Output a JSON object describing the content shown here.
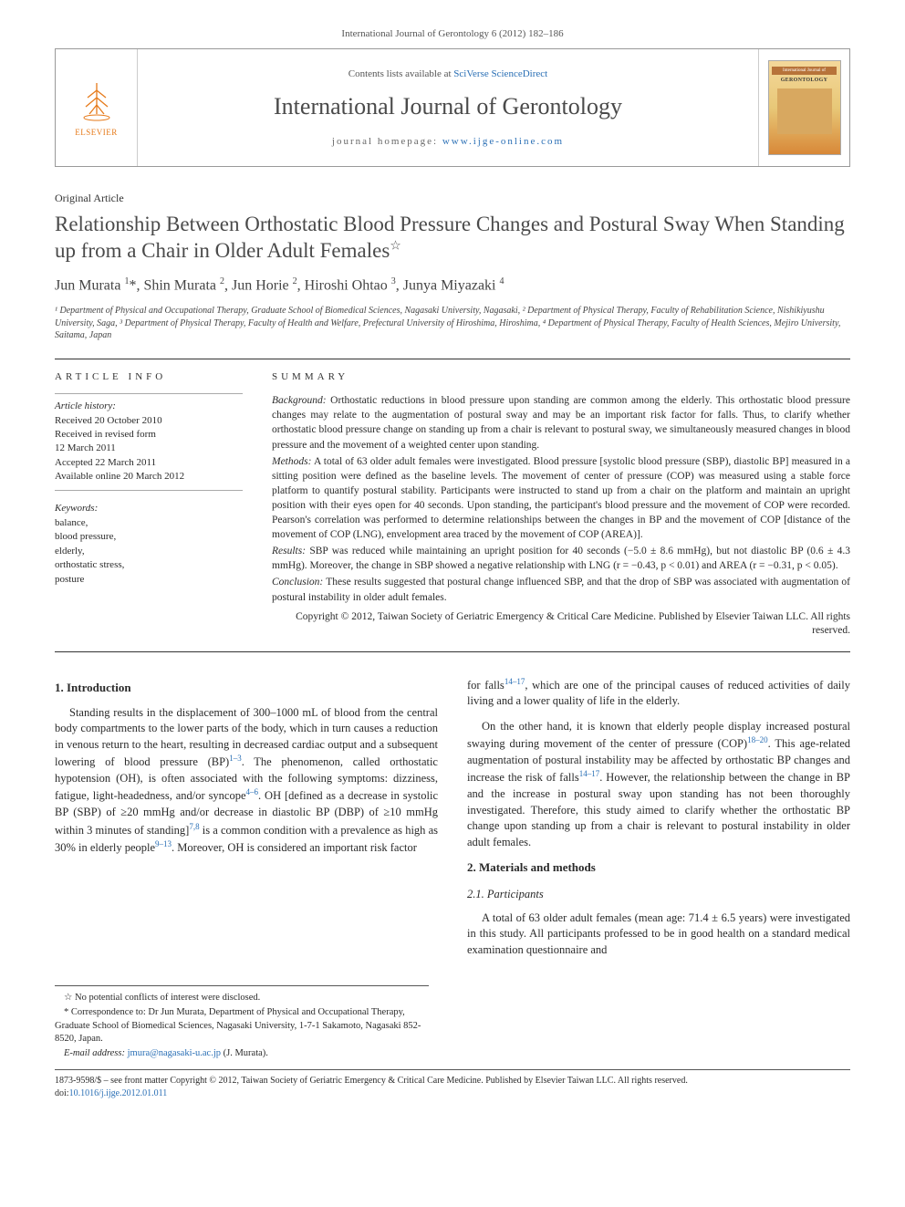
{
  "citation": "International Journal of Gerontology 6 (2012) 182–186",
  "masthead": {
    "publisher": "ELSEVIER",
    "contents_prefix": "Contents lists available at ",
    "contents_link": "SciVerse ScienceDirect",
    "journal_title": "International Journal of Gerontology",
    "homepage_prefix": "journal homepage: ",
    "homepage_url": "www.ijge-online.com",
    "cover_banner": "International Journal of",
    "cover_title": "GERONTOLOGY"
  },
  "article": {
    "type": "Original Article",
    "title": "Relationship Between Orthostatic Blood Pressure Changes and Postural Sway When Standing up from a Chair in Older Adult Females",
    "title_note_symbol": "☆",
    "authors_html": "Jun Murata <sup>1</sup>*, Shin Murata <sup>2</sup>, Jun Horie <sup>2</sup>, Hiroshi Ohtao <sup>3</sup>, Junya Miyazaki <sup>4</sup>",
    "affiliations": "¹ Department of Physical and Occupational Therapy, Graduate School of Biomedical Sciences, Nagasaki University, Nagasaki, ² Department of Physical Therapy, Faculty of Rehabilitation Science, Nishikiyushu University, Saga, ³ Department of Physical Therapy, Faculty of Health and Welfare, Prefectural University of Hiroshima, Hiroshima, ⁴ Department of Physical Therapy, Faculty of Health Sciences, Mejiro University, Saitama, Japan"
  },
  "info": {
    "label": "ARTICLE INFO",
    "history_label": "Article history:",
    "history": [
      "Received 20 October 2010",
      "Received in revised form",
      "12 March 2011",
      "Accepted 22 March 2011",
      "Available online 20 March 2012"
    ],
    "keywords_label": "Keywords:",
    "keywords": [
      "balance,",
      "blood pressure,",
      "elderly,",
      "orthostatic stress,",
      "posture"
    ]
  },
  "summary": {
    "label": "SUMMARY",
    "background_label": "Background:",
    "background": " Orthostatic reductions in blood pressure upon standing are common among the elderly. This orthostatic blood pressure changes may relate to the augmentation of postural sway and may be an important risk factor for falls. Thus, to clarify whether orthostatic blood pressure change on standing up from a chair is relevant to postural sway, we simultaneously measured changes in blood pressure and the movement of a weighted center upon standing.",
    "methods_label": "Methods:",
    "methods": " A total of 63 older adult females were investigated. Blood pressure [systolic blood pressure (SBP), diastolic BP] measured in a sitting position were defined as the baseline levels. The movement of center of pressure (COP) was measured using a stable force platform to quantify postural stability. Participants were instructed to stand up from a chair on the platform and maintain an upright position with their eyes open for 40 seconds. Upon standing, the participant's blood pressure and the movement of COP were recorded. Pearson's correlation was performed to determine relationships between the changes in BP and the movement of COP [distance of the movement of COP (LNG), envelopment area traced by the movement of COP (AREA)].",
    "results_label": "Results:",
    "results": " SBP was reduced while maintaining an upright position for 40 seconds (−5.0 ± 8.6 mmHg), but not diastolic BP (0.6 ± 4.3 mmHg). Moreover, the change in SBP showed a negative relationship with LNG (r = −0.43, p < 0.01) and AREA (r = −0.31, p < 0.05).",
    "conclusion_label": "Conclusion:",
    "conclusion": " These results suggested that postural change influenced SBP, and that the drop of SBP was associated with augmentation of postural instability in older adult females.",
    "copyright": "Copyright © 2012, Taiwan Society of Geriatric Emergency & Critical Care Medicine. Published by Elsevier Taiwan LLC. All rights reserved."
  },
  "body": {
    "intro_heading": "1. Introduction",
    "intro_p1_a": "Standing results in the displacement of 300–1000 mL of blood from the central body compartments to the lower parts of the body, which in turn causes a reduction in venous return to the heart, resulting in decreased cardiac output and a subsequent lowering of blood pressure (BP)",
    "intro_ref1": "1–3",
    "intro_p1_b": ". The phenomenon, called orthostatic hypotension (OH), is often associated with the following symptoms: dizziness, fatigue, light-headedness, and/or syncope",
    "intro_ref2": "4–6",
    "intro_p1_c": ". OH [defined as a decrease in systolic BP (SBP) of ≥20 mmHg and/or decrease in diastolic BP (DBP) of ≥10 mmHg within 3 minutes of standing]",
    "intro_ref3": "7,8",
    "intro_p1_d": " is a common condition with a prevalence as high as 30% in elderly people",
    "intro_ref4": "9–13",
    "intro_p1_e": ". Moreover, OH is considered an important risk factor",
    "intro_p2_a": "for falls",
    "intro_ref5": "14–17",
    "intro_p2_b": ", which are one of the principal causes of reduced activities of daily living and a lower quality of life in the elderly.",
    "intro_p3_a": "On the other hand, it is known that elderly people display increased postural swaying during movement of the center of pressure (COP)",
    "intro_ref6": "18–20",
    "intro_p3_b": ". This age-related augmentation of postural instability may be affected by orthostatic BP changes and increase the risk of falls",
    "intro_ref7": "14–17",
    "intro_p3_c": ". However, the relationship between the change in BP and the increase in postural sway upon standing has not been thoroughly investigated. Therefore, this study aimed to clarify whether the orthostatic BP change upon standing up from a chair is relevant to postural instability in older adult females.",
    "methods_heading": "2. Materials and methods",
    "participants_heading": "2.1. Participants",
    "participants_p": "A total of 63 older adult females (mean age: 71.4 ± 6.5 years) were investigated in this study. All participants professed to be in good health on a standard medical examination questionnaire and"
  },
  "footnotes": {
    "conflict": "☆ No potential conflicts of interest were disclosed.",
    "correspondence": "* Correspondence to: Dr Jun Murata, Department of Physical and Occupational Therapy, Graduate School of Biomedical Sciences, Nagasaki University, 1-7-1 Sakamoto, Nagasaki 852-8520, Japan.",
    "email_label": "E-mail address: ",
    "email": "jmura@nagasaki-u.ac.jp",
    "email_suffix": " (J. Murata)."
  },
  "doi": {
    "line1": "1873-9598/$ – see front matter Copyright © 2012, Taiwan Society of Geriatric Emergency & Critical Care Medicine. Published by Elsevier Taiwan LLC. All rights reserved.",
    "prefix": "doi:",
    "value": "10.1016/j.ijge.2012.01.011"
  },
  "colors": {
    "link": "#2a6fb5",
    "text": "#2a2a2a",
    "publisher": "#e67a1a",
    "border": "#999999",
    "rule": "#333333"
  }
}
